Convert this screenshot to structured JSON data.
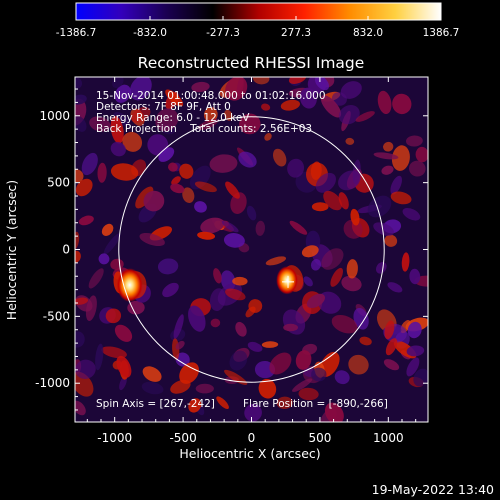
{
  "colorbar": {
    "ticks": [
      "-1386.7",
      "-832.0",
      "-277.3",
      "277.3",
      "832.0",
      "1386.7"
    ],
    "min": -1386.7,
    "max": 1386.7,
    "colormap": [
      "#0000ff",
      "#3300bb",
      "#1a0050",
      "#000000",
      "#b00000",
      "#ff2000",
      "#ff8c00",
      "#ffd040",
      "#ffffff"
    ]
  },
  "chart_data": {
    "type": "heatmap",
    "title": "Reconstructed RHESSI Image",
    "xlabel": "Heliocentric X (arcsec)",
    "ylabel": "Heliocentric Y (arcsec)",
    "xlim": [
      -1290,
      1290
    ],
    "ylim": [
      -1290,
      1290
    ],
    "x_ticks": [
      "-1000",
      "-500",
      "0",
      "500",
      "1000"
    ],
    "y_ticks": [
      "1000",
      "500",
      "0",
      "-500",
      "-1000"
    ],
    "x_tick_values": [
      -1000,
      -500,
      0,
      500,
      1000
    ],
    "y_tick_values": [
      1000,
      500,
      0,
      -500,
      -1000
    ],
    "solar_limb_radius_arcsec": 970,
    "sources": [
      {
        "x": -890,
        "y": -266,
        "intensity": 1386.7
      },
      {
        "x": 260,
        "y": -230,
        "intensity": 900
      }
    ],
    "crosshair": {
      "x": 267,
      "y": -242
    },
    "annotations": [
      "15-Nov-2014 01:00:48.000 to 01:02:16.000",
      "Detectors: 7F 8F 9F, Att 0",
      "Energy Range: 6.0 - 12.0 keV",
      "Back Projection    Total counts: 2.56E+03"
    ],
    "spin_axis": "Spin Axis = [267,-242]",
    "flare_position": "Flare Position = [-890,-266]"
  },
  "footer": {
    "timestamp": "19-May-2022 13:40"
  }
}
